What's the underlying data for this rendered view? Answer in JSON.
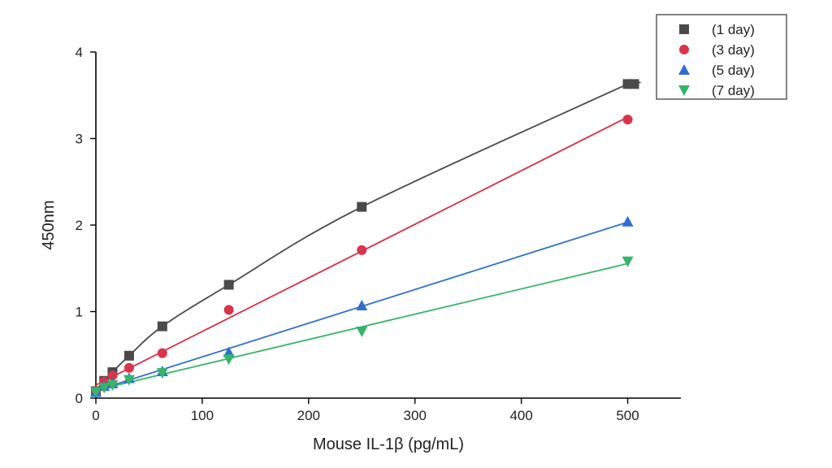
{
  "chart_data": {
    "type": "scatter",
    "title": "",
    "xlabel": "Mouse IL-1β (pg/mL)",
    "ylabel": "450nm",
    "xlim": [
      0,
      550
    ],
    "ylim": [
      0,
      4
    ],
    "xticks": [
      0,
      100,
      200,
      300,
      400,
      500
    ],
    "yticks": [
      0,
      1,
      2,
      3,
      4
    ],
    "grid": false,
    "legend_position": "top-right",
    "x": [
      0,
      7.8,
      15.6,
      31.25,
      62.5,
      125,
      250,
      500
    ],
    "series": [
      {
        "name": "(1 day)",
        "marker": "square",
        "color": "#4a4a4a",
        "values": [
          0.08,
          0.2,
          0.3,
          0.49,
          0.83,
          1.31,
          2.21,
          3.63
        ],
        "fit": "curve"
      },
      {
        "name": "(3 day)",
        "marker": "circle",
        "color": "#d9344a",
        "values": [
          0.08,
          0.19,
          0.26,
          0.35,
          0.52,
          1.02,
          1.71,
          3.22
        ],
        "fit": "line"
      },
      {
        "name": "(5 day)",
        "marker": "triangle-up",
        "color": "#2f6fd0",
        "values": [
          0.07,
          0.14,
          0.17,
          0.23,
          0.31,
          0.53,
          1.07,
          2.04
        ],
        "fit": "line"
      },
      {
        "name": "(7 day)",
        "marker": "triangle-down",
        "color": "#36b56a",
        "values": [
          0.07,
          0.12,
          0.15,
          0.21,
          0.29,
          0.45,
          0.77,
          1.58
        ],
        "fit": "line"
      }
    ]
  }
}
